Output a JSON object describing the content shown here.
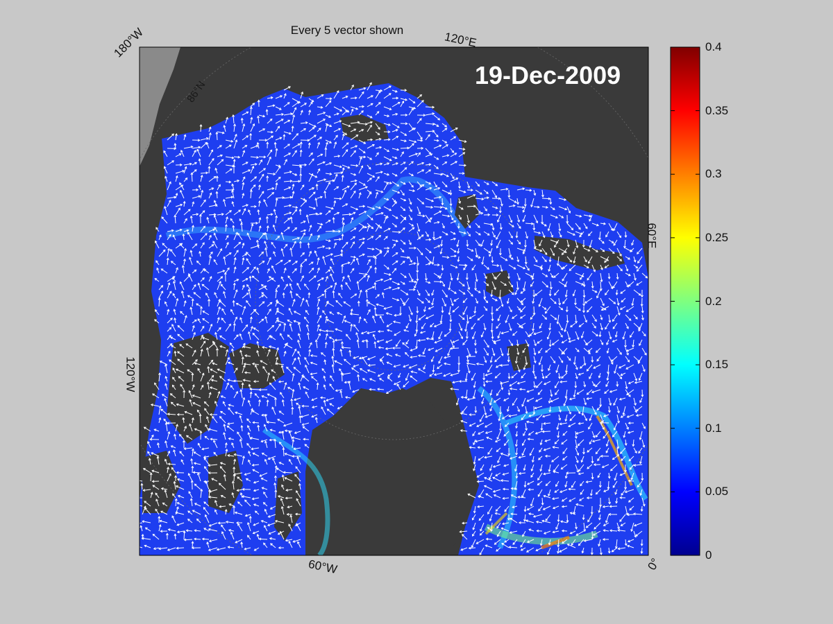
{
  "title": "Every 5 vector shown",
  "date_label": "19-Dec-2009",
  "map_labels": {
    "lon_180w": "180°W",
    "lon_120e": "120°E",
    "lon_60e": "60°E",
    "lon_120w": "120°W",
    "lon_60w": "60°W",
    "lon_0": "0°",
    "lat_86n": "86°N"
  },
  "colorbar": {
    "colormap": "jet",
    "range": [
      0,
      0.4
    ],
    "ticks": [
      "0.4",
      "0.35",
      "0.3",
      "0.25",
      "0.2",
      "0.15",
      "0.1",
      "0.05",
      "0"
    ]
  },
  "colors": {
    "background": "#c8c8c8",
    "land": "#3a3a3a",
    "ice_field": "#1e3ef0",
    "vectors": "#ffffff"
  }
}
